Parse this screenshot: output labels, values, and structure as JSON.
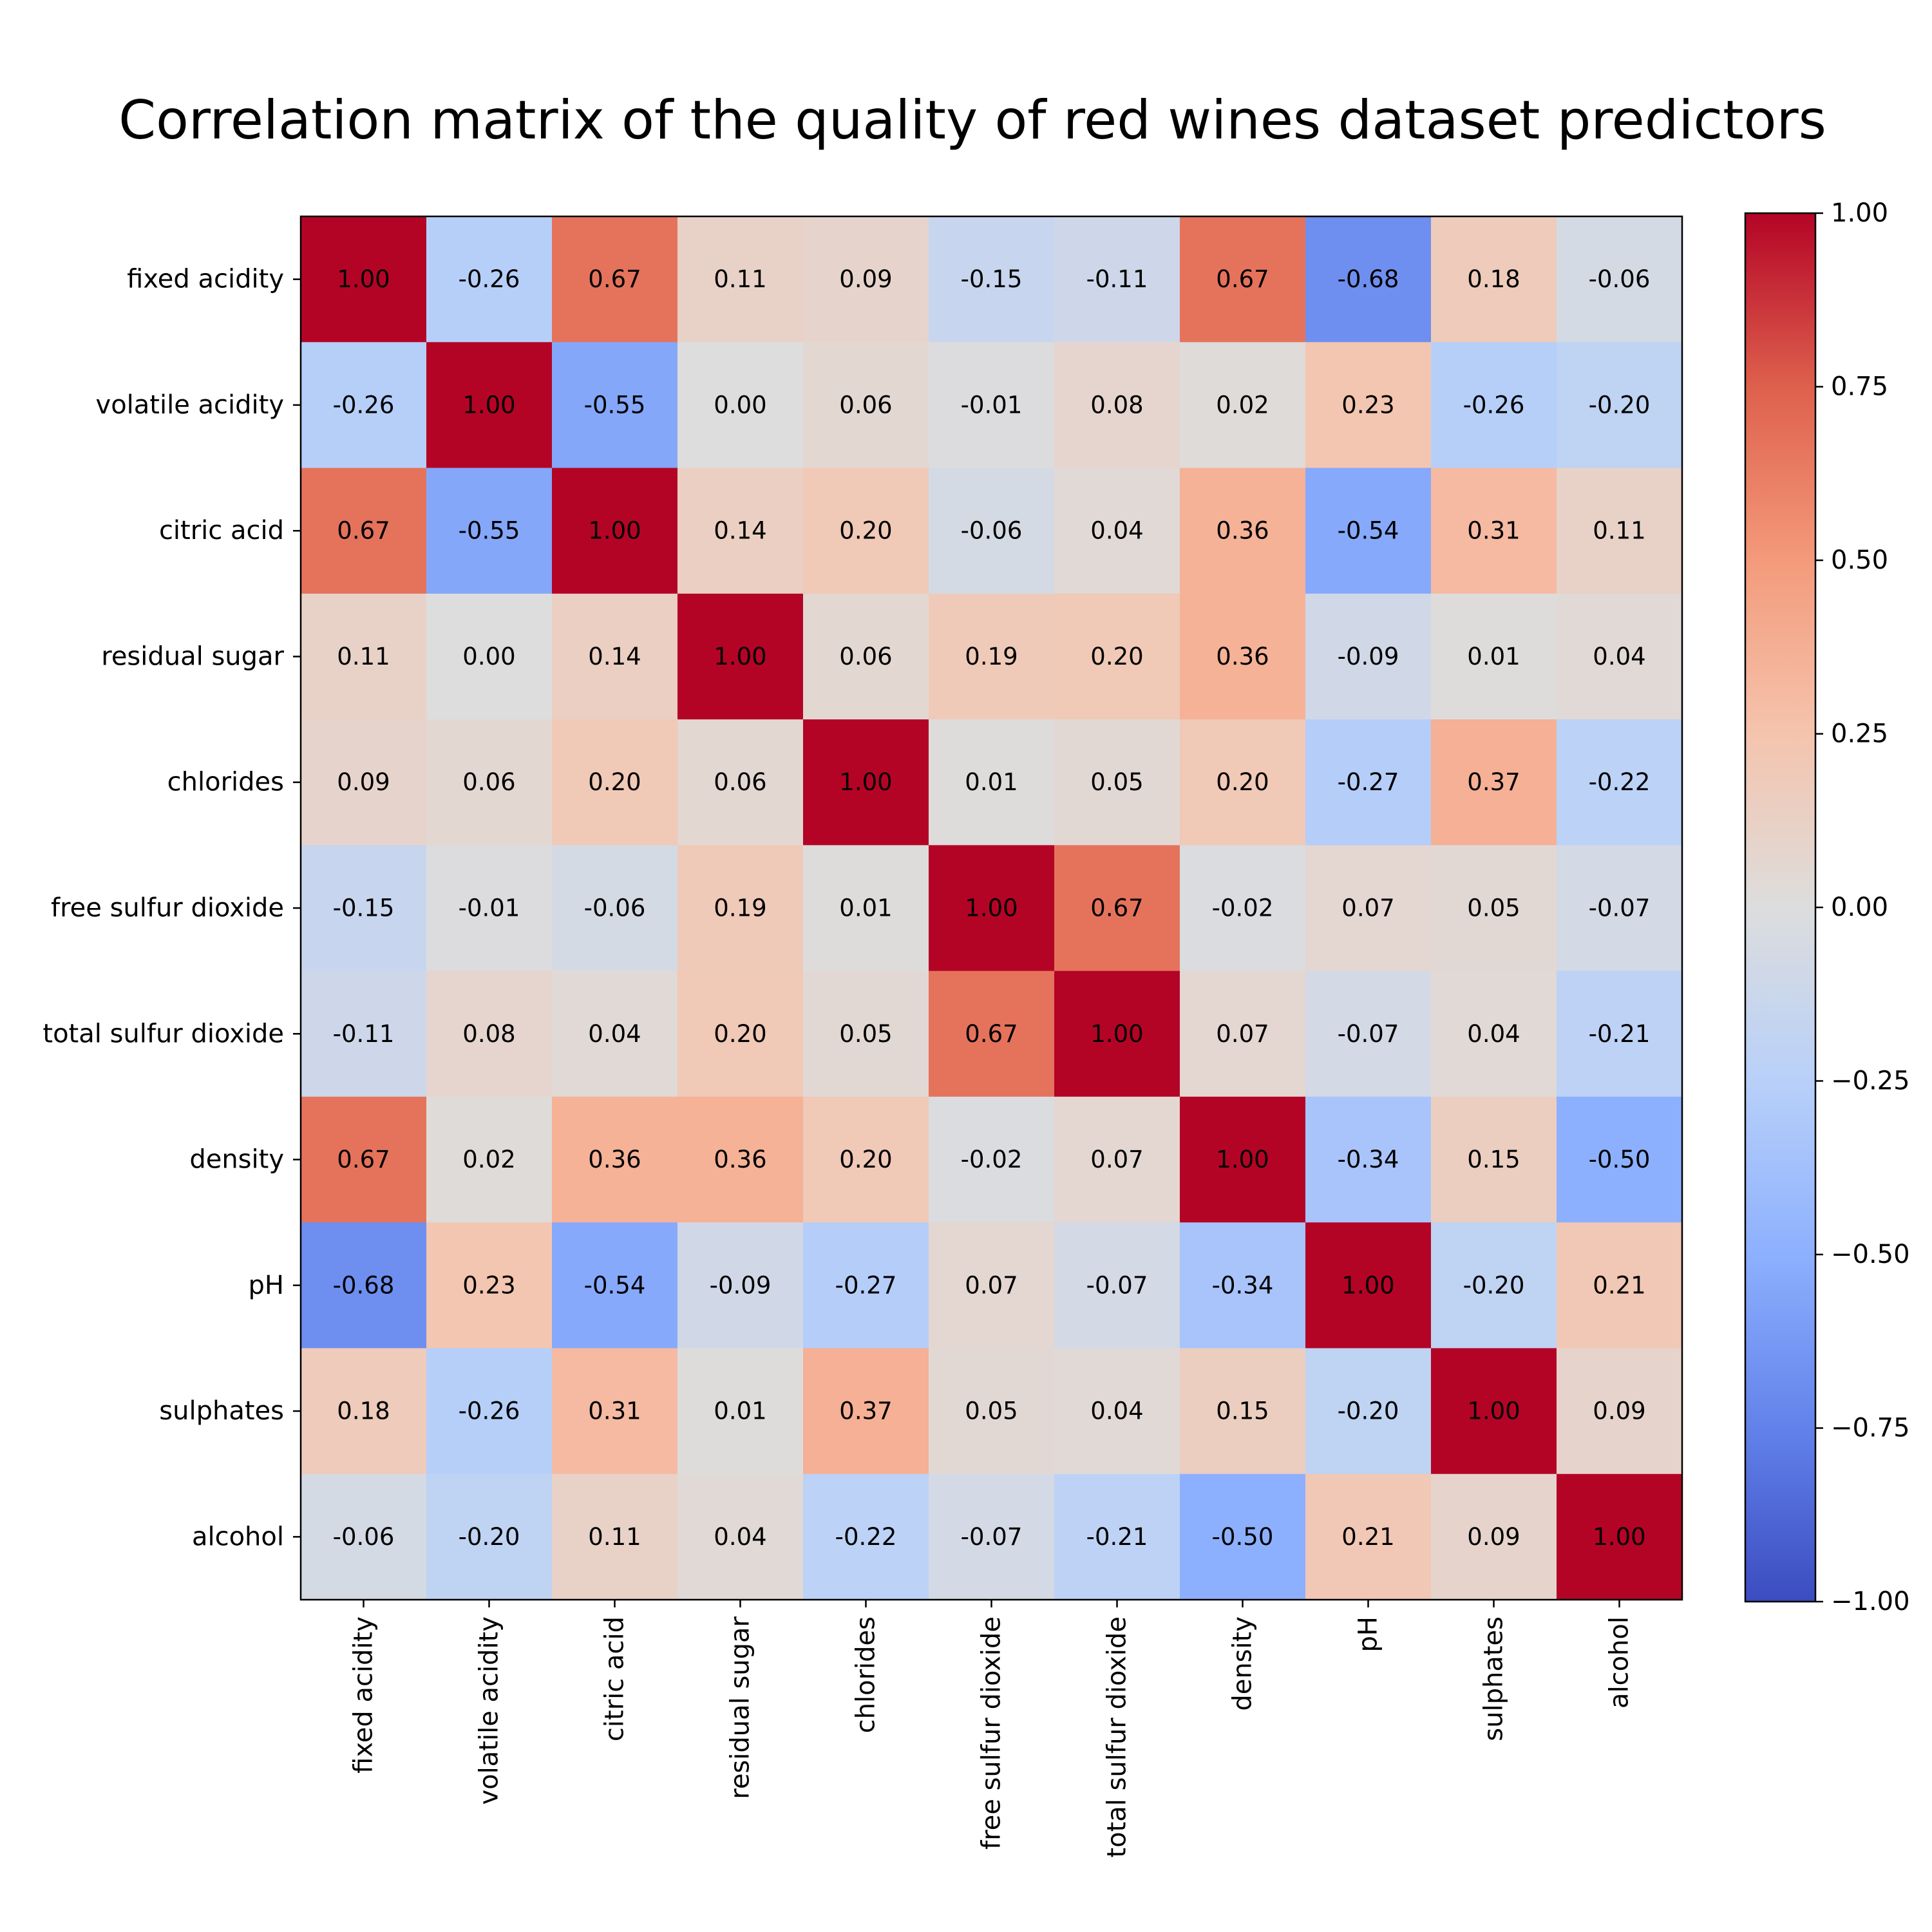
{
  "chart_data": {
    "type": "heatmap",
    "title": "Correlation matrix of the quality of red wines dataset predictors",
    "xlabel": "",
    "ylabel": "",
    "labels": [
      "fixed acidity",
      "volatile acidity",
      "citric acid",
      "residual sugar",
      "chlorides",
      "free sulfur dioxide",
      "total sulfur dioxide",
      "density",
      "pH",
      "sulphates",
      "alcohol"
    ],
    "value_labels": [
      [
        "1.00",
        "-0.26",
        "0.67",
        "0.11",
        "0.09",
        "-0.15",
        "-0.11",
        "0.67",
        "-0.68",
        "0.18",
        "-0.06"
      ],
      [
        "-0.26",
        "1.00",
        "-0.55",
        "0.00",
        "0.06",
        "-0.01",
        "0.08",
        "0.02",
        "0.23",
        "-0.26",
        "-0.20"
      ],
      [
        "0.67",
        "-0.55",
        "1.00",
        "0.14",
        "0.20",
        "-0.06",
        "0.04",
        "0.36",
        "-0.54",
        "0.31",
        "0.11"
      ],
      [
        "0.11",
        "0.00",
        "0.14",
        "1.00",
        "0.06",
        "0.19",
        "0.20",
        "0.36",
        "-0.09",
        "0.01",
        "0.04"
      ],
      [
        "0.09",
        "0.06",
        "0.20",
        "0.06",
        "1.00",
        "0.01",
        "0.05",
        "0.20",
        "-0.27",
        "0.37",
        "-0.22"
      ],
      [
        "-0.15",
        "-0.01",
        "-0.06",
        "0.19",
        "0.01",
        "1.00",
        "0.67",
        "-0.02",
        "0.07",
        "0.05",
        "-0.07"
      ],
      [
        "-0.11",
        "0.08",
        "0.04",
        "0.20",
        "0.05",
        "0.67",
        "1.00",
        "0.07",
        "-0.07",
        "0.04",
        "-0.21"
      ],
      [
        "0.67",
        "0.02",
        "0.36",
        "0.36",
        "0.20",
        "-0.02",
        "0.07",
        "1.00",
        "-0.34",
        "0.15",
        "-0.50"
      ],
      [
        "-0.68",
        "0.23",
        "-0.54",
        "-0.09",
        "-0.27",
        "0.07",
        "-0.07",
        "-0.34",
        "1.00",
        "-0.20",
        "0.21"
      ],
      [
        "0.18",
        "-0.26",
        "0.31",
        "0.01",
        "0.37",
        "0.05",
        "0.04",
        "0.15",
        "-0.20",
        "1.00",
        "0.09"
      ],
      [
        "-0.06",
        "-0.20",
        "0.11",
        "0.04",
        "-0.22",
        "-0.07",
        "-0.21",
        "-0.50",
        "0.21",
        "0.09",
        "1.00"
      ]
    ],
    "colorbar": {
      "colormap": "coolwarm",
      "vmin": -1.0,
      "vmax": 1.0,
      "ticks": [
        1.0,
        0.75,
        0.5,
        0.25,
        0.0,
        -0.25,
        -0.5,
        -0.75,
        -1.0
      ],
      "tick_labels": [
        "1.00",
        "0.75",
        "0.50",
        "0.25",
        "0.00",
        "−0.25",
        "−0.50",
        "−0.75",
        "−1.00"
      ]
    },
    "grid": false
  }
}
